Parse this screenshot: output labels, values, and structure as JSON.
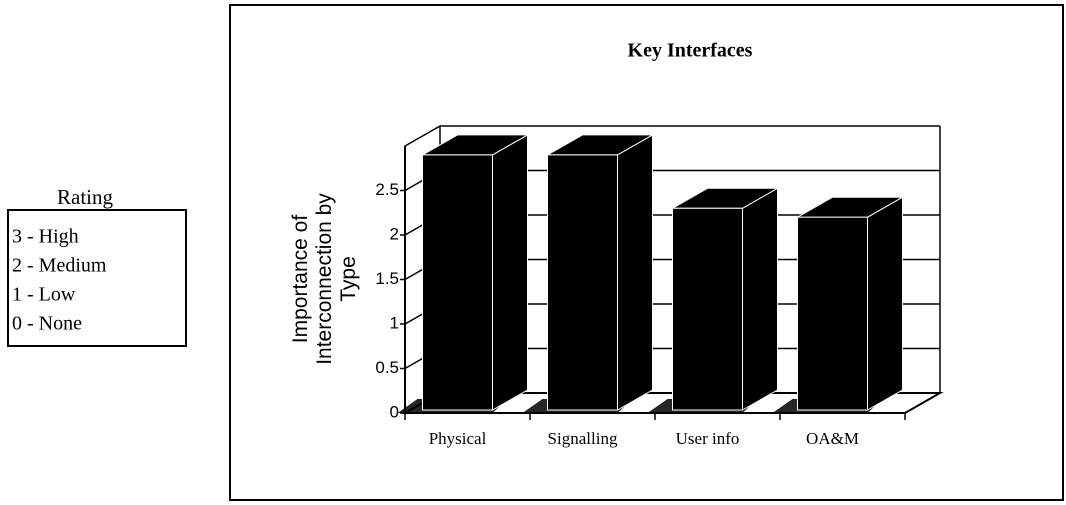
{
  "rating_key": {
    "title": "Rating",
    "items": [
      "3 - High",
      "2 - Medium",
      "1 - Low",
      "0 - None"
    ]
  },
  "chart_data": {
    "type": "bar3d",
    "title": "Key Interfaces",
    "ylabel": [
      "Importance of",
      "Interconnection by",
      "Type"
    ],
    "categories": [
      "Physical",
      "Signalling",
      "User info",
      "OA&M"
    ],
    "values": [
      2.9,
      2.9,
      2.3,
      2.2
    ],
    "color": "#000000",
    "ylim": [
      0,
      3
    ],
    "yticks": [
      0,
      0.5,
      1,
      1.5,
      2,
      2.5
    ],
    "grid": true
  }
}
